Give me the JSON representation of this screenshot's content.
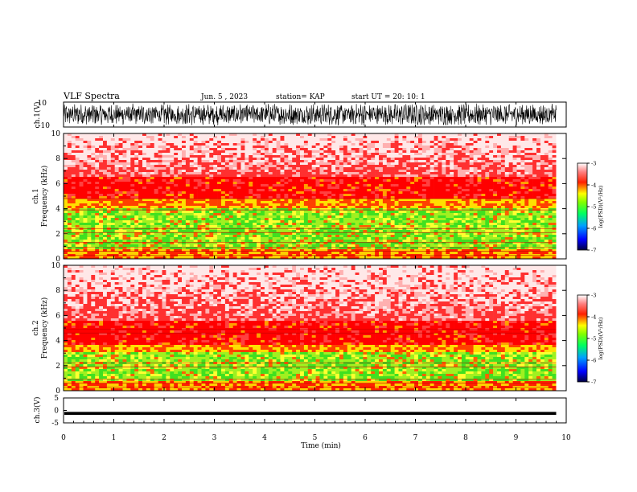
{
  "header": {
    "title": "VLF Spectra",
    "date": "Jun. 5 , 2023",
    "station": "station= KAP",
    "start": "start UT = 20: 10: 1"
  },
  "colors": {
    "spectrogram_low": "#00b050",
    "spectrogram_mid": "#ffff00",
    "spectrogram_high": "#ff0000",
    "spectrogram_bg": "#ffffff",
    "trace": "#000000"
  },
  "chart_data": [
    {
      "type": "line",
      "name": "ch1-waveform",
      "ylabel": "ch.1(V)",
      "ylim": [
        -10,
        10
      ],
      "yticks": [
        "10",
        "-10"
      ],
      "xlim": [
        0,
        10
      ],
      "data_extent_min": 9.8,
      "description_values": {
        "amplitude_range": [
          -10,
          10
        ]
      }
    },
    {
      "type": "heatmap",
      "name": "ch1-spectrogram",
      "ylabel": "ch.1\nFrequency (kHz)",
      "ylabel_lines": [
        "ch.1",
        "Frequency (kHz)"
      ],
      "ylim": [
        0,
        10
      ],
      "yticks": [
        "0",
        "2",
        "4",
        "6",
        "8",
        "10"
      ],
      "xlim": [
        0,
        10
      ],
      "colorbar": {
        "label": "log(PSD)(V²/Hz)",
        "range": [
          -7,
          -3
        ],
        "ticks": [
          "-3",
          "-4",
          "-5",
          "-6",
          "-7"
        ]
      },
      "bands_khz": [
        {
          "from": 0,
          "to": 4.8,
          "level": "green-yellow"
        },
        {
          "from": 4.8,
          "to": 6.5,
          "level": "red"
        },
        {
          "from": 6.5,
          "to": 10,
          "level": "sparse-red"
        }
      ],
      "lines_khz": [
        0.3,
        0.6,
        0.9,
        1.3,
        2.1,
        2.4,
        3.9,
        4.8
      ]
    },
    {
      "type": "heatmap",
      "name": "ch2-spectrogram",
      "ylabel_lines": [
        "ch.2",
        "Frequency (kHz)"
      ],
      "ylim": [
        0,
        10
      ],
      "yticks": [
        "0",
        "2",
        "4",
        "6",
        "8",
        "10"
      ],
      "xlim": [
        0,
        10
      ],
      "colorbar": {
        "label": "log(PSD)(V²/Hz)",
        "range": [
          -7,
          -3
        ],
        "ticks": [
          "-3",
          "-4",
          "-5",
          "-6",
          "-7"
        ]
      },
      "bands_khz": [
        {
          "from": 0,
          "to": 3.7,
          "level": "green-yellow"
        },
        {
          "from": 3.7,
          "to": 5.5,
          "level": "red"
        },
        {
          "from": 5.5,
          "to": 10,
          "level": "sparse-red"
        }
      ],
      "lines_khz": [
        0.3,
        0.6,
        0.9,
        1.9,
        2.2,
        4.6,
        4.9
      ]
    },
    {
      "type": "line",
      "name": "ch3-waveform",
      "ylabel": "ch.3(V)",
      "ylim": [
        -5,
        5
      ],
      "yticks": [
        "5",
        "0",
        "-5"
      ],
      "xlim": [
        0,
        10
      ],
      "level": -1.2
    }
  ],
  "xaxis": {
    "label": "Time (min)",
    "ticks": [
      "0",
      "1",
      "2",
      "3",
      "4",
      "5",
      "6",
      "7",
      "8",
      "9",
      "10"
    ]
  }
}
